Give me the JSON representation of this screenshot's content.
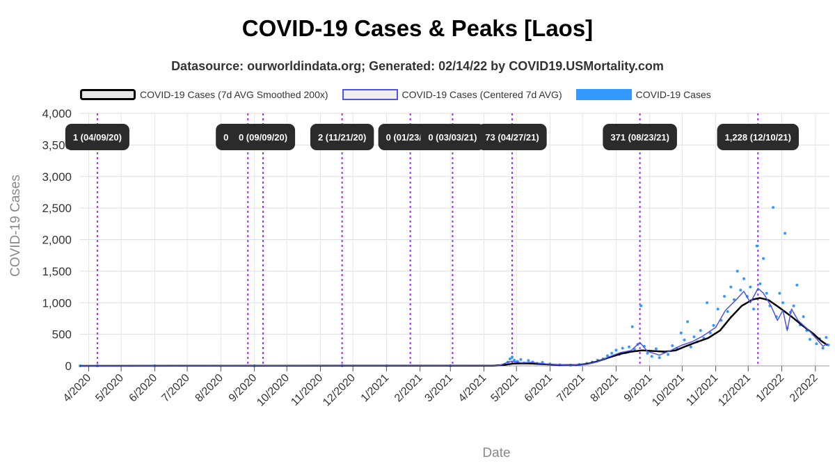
{
  "chart_data": {
    "type": "line",
    "title": "COVID-19 Cases & Peaks [Laos]",
    "subtitle": "Datasource: ourworldindata.org; Generated: 02/14/22 by COVID19.USMortality.com",
    "xlabel": "Date",
    "ylabel": "COVID-19 Cases",
    "ylim": [
      0,
      4000
    ],
    "y_ticks": [
      "0",
      "500",
      "1,000",
      "1,500",
      "2,000",
      "2,500",
      "3,000",
      "3,500",
      "4,000"
    ],
    "y_tick_values": [
      0,
      500,
      1000,
      1500,
      2000,
      2500,
      3000,
      3500,
      4000
    ],
    "x_range": [
      "2020-03-24",
      "2022-02-14"
    ],
    "x_ticks": [
      {
        "date": "2020-04-01",
        "label": "4/2020"
      },
      {
        "date": "2020-05-01",
        "label": "5/2020"
      },
      {
        "date": "2020-06-01",
        "label": "6/2020"
      },
      {
        "date": "2020-07-01",
        "label": "7/2020"
      },
      {
        "date": "2020-08-01",
        "label": "8/2020"
      },
      {
        "date": "2020-09-01",
        "label": "9/2020"
      },
      {
        "date": "2020-10-01",
        "label": "10/2020"
      },
      {
        "date": "2020-11-01",
        "label": "11/2020"
      },
      {
        "date": "2020-12-01",
        "label": "12/2020"
      },
      {
        "date": "2021-01-01",
        "label": "1/2021"
      },
      {
        "date": "2021-02-01",
        "label": "2/2021"
      },
      {
        "date": "2021-03-01",
        "label": "3/2021"
      },
      {
        "date": "2021-04-01",
        "label": "4/2021"
      },
      {
        "date": "2021-05-01",
        "label": "5/2021"
      },
      {
        "date": "2021-06-01",
        "label": "6/2021"
      },
      {
        "date": "2021-07-01",
        "label": "7/2021"
      },
      {
        "date": "2021-08-01",
        "label": "8/2021"
      },
      {
        "date": "2021-09-01",
        "label": "9/2021"
      },
      {
        "date": "2021-10-01",
        "label": "10/2021"
      },
      {
        "date": "2021-11-01",
        "label": "11/2021"
      },
      {
        "date": "2021-12-01",
        "label": "12/2021"
      },
      {
        "date": "2022-01-01",
        "label": "1/2022"
      },
      {
        "date": "2022-02-01",
        "label": "2/2022"
      }
    ],
    "legend": {
      "placement": "top-left",
      "entries": [
        {
          "label": "COVID-19 Cases (7d AVG Smoothed 200x)",
          "color": "#000000"
        },
        {
          "label": "COVID-19 Cases (Centered 7d AVG)",
          "color": "#4f52e3"
        },
        {
          "label": "COVID-19 Cases",
          "color": "#3399ff"
        }
      ]
    },
    "grid": true,
    "peaks": [
      {
        "date": "2020-04-09",
        "label": "1 (04/09/20)"
      },
      {
        "date": "2020-08-26",
        "label": "0 (08/26/20)"
      },
      {
        "date": "2020-09-09",
        "label": "0 (09/09/20)"
      },
      {
        "date": "2020-11-21",
        "label": "2 (11/21/20)"
      },
      {
        "date": "2021-01-23",
        "label": "0 (01/23/21)"
      },
      {
        "date": "2021-03-03",
        "label": "0 (03/03/21)"
      },
      {
        "date": "2021-04-27",
        "label": "73 (04/27/21)"
      },
      {
        "date": "2021-08-23",
        "label": "371 (08/23/21)"
      },
      {
        "date": "2021-12-10",
        "label": "1,228 (12/10/21)"
      }
    ],
    "series": [
      {
        "name": "COVID-19 Cases (7d AVG Smoothed 200x)",
        "color": "#000000",
        "points": [
          [
            "2020-03-24",
            0
          ],
          [
            "2021-04-10",
            3
          ],
          [
            "2021-04-20",
            15
          ],
          [
            "2021-04-28",
            35
          ],
          [
            "2021-05-10",
            40
          ],
          [
            "2021-05-25",
            28
          ],
          [
            "2021-06-10",
            12
          ],
          [
            "2021-06-25",
            12
          ],
          [
            "2021-07-05",
            30
          ],
          [
            "2021-07-15",
            70
          ],
          [
            "2021-07-25",
            130
          ],
          [
            "2021-08-05",
            190
          ],
          [
            "2021-08-15",
            225
          ],
          [
            "2021-08-25",
            245
          ],
          [
            "2021-09-05",
            235
          ],
          [
            "2021-09-15",
            225
          ],
          [
            "2021-09-25",
            245
          ],
          [
            "2021-10-05",
            315
          ],
          [
            "2021-10-15",
            380
          ],
          [
            "2021-10-25",
            440
          ],
          [
            "2021-11-05",
            560
          ],
          [
            "2021-11-15",
            770
          ],
          [
            "2021-11-25",
            950
          ],
          [
            "2021-12-05",
            1050
          ],
          [
            "2021-12-12",
            1075
          ],
          [
            "2021-12-20",
            1040
          ],
          [
            "2021-12-30",
            920
          ],
          [
            "2022-01-10",
            780
          ],
          [
            "2022-01-20",
            640
          ],
          [
            "2022-01-30",
            510
          ],
          [
            "2022-02-06",
            400
          ],
          [
            "2022-02-12",
            330
          ]
        ]
      },
      {
        "name": "COVID-19 Cases (Centered 7d AVG)",
        "color": "#4f52e3",
        "points": [
          [
            "2020-03-24",
            0
          ],
          [
            "2021-04-15",
            5
          ],
          [
            "2021-04-22",
            50
          ],
          [
            "2021-04-27",
            73
          ],
          [
            "2021-05-05",
            50
          ],
          [
            "2021-05-15",
            55
          ],
          [
            "2021-05-25",
            35
          ],
          [
            "2021-06-05",
            20
          ],
          [
            "2021-06-20",
            10
          ],
          [
            "2021-07-05",
            25
          ],
          [
            "2021-07-15",
            65
          ],
          [
            "2021-07-25",
            140
          ],
          [
            "2021-08-05",
            210
          ],
          [
            "2021-08-15",
            245
          ],
          [
            "2021-08-23",
            371
          ],
          [
            "2021-08-30",
            230
          ],
          [
            "2021-09-10",
            170
          ],
          [
            "2021-09-20",
            240
          ],
          [
            "2021-10-01",
            330
          ],
          [
            "2021-10-10",
            380
          ],
          [
            "2021-10-20",
            470
          ],
          [
            "2021-11-01",
            610
          ],
          [
            "2021-11-10",
            880
          ],
          [
            "2021-11-20",
            1050
          ],
          [
            "2021-11-27",
            1180
          ],
          [
            "2021-12-03",
            1000
          ],
          [
            "2021-12-10",
            1228
          ],
          [
            "2021-12-15",
            1150
          ],
          [
            "2021-12-22",
            950
          ],
          [
            "2021-12-28",
            720
          ],
          [
            "2022-01-02",
            880
          ],
          [
            "2022-01-06",
            560
          ],
          [
            "2022-01-10",
            900
          ],
          [
            "2022-01-16",
            720
          ],
          [
            "2022-01-25",
            580
          ],
          [
            "2022-02-02",
            430
          ],
          [
            "2022-02-08",
            310
          ],
          [
            "2022-02-12",
            350
          ]
        ]
      }
    ],
    "scatter": {
      "name": "COVID-19 Cases",
      "color": "#3399ff",
      "points": [
        [
          "2020-03-24",
          0
        ],
        [
          "2020-04-09",
          1
        ],
        [
          "2020-06-01",
          0
        ],
        [
          "2020-09-01",
          0
        ],
        [
          "2020-11-21",
          2
        ],
        [
          "2021-01-01",
          0
        ],
        [
          "2021-03-01",
          0
        ],
        [
          "2021-04-20",
          20
        ],
        [
          "2021-04-23",
          60
        ],
        [
          "2021-04-25",
          110
        ],
        [
          "2021-04-27",
          140
        ],
        [
          "2021-04-29",
          90
        ],
        [
          "2021-05-02",
          70
        ],
        [
          "2021-05-05",
          100
        ],
        [
          "2021-05-08",
          45
        ],
        [
          "2021-05-12",
          85
        ],
        [
          "2021-05-16",
          60
        ],
        [
          "2021-05-20",
          40
        ],
        [
          "2021-05-25",
          55
        ],
        [
          "2021-06-01",
          30
        ],
        [
          "2021-06-10",
          15
        ],
        [
          "2021-06-20",
          10
        ],
        [
          "2021-06-28",
          20
        ],
        [
          "2021-07-05",
          40
        ],
        [
          "2021-07-10",
          60
        ],
        [
          "2021-07-15",
          90
        ],
        [
          "2021-07-20",
          110
        ],
        [
          "2021-07-24",
          160
        ],
        [
          "2021-07-28",
          200
        ],
        [
          "2021-08-01",
          250
        ],
        [
          "2021-08-04",
          180
        ],
        [
          "2021-08-07",
          280
        ],
        [
          "2021-08-10",
          210
        ],
        [
          "2021-08-13",
          300
        ],
        [
          "2021-08-16",
          620
        ],
        [
          "2021-08-18",
          260
        ],
        [
          "2021-08-21",
          340
        ],
        [
          "2021-08-24",
          950
        ],
        [
          "2021-08-27",
          310
        ],
        [
          "2021-08-30",
          200
        ],
        [
          "2021-09-03",
          150
        ],
        [
          "2021-09-07",
          270
        ],
        [
          "2021-09-10",
          130
        ],
        [
          "2021-09-14",
          220
        ],
        [
          "2021-09-18",
          180
        ],
        [
          "2021-09-22",
          320
        ],
        [
          "2021-09-26",
          280
        ],
        [
          "2021-09-30",
          520
        ],
        [
          "2021-10-03",
          410
        ],
        [
          "2021-10-06",
          700
        ],
        [
          "2021-10-09",
          300
        ],
        [
          "2021-10-12",
          460
        ],
        [
          "2021-10-15",
          380
        ],
        [
          "2021-10-18",
          560
        ],
        [
          "2021-10-21",
          440
        ],
        [
          "2021-10-24",
          1000
        ],
        [
          "2021-10-27",
          520
        ],
        [
          "2021-10-30",
          640
        ],
        [
          "2021-11-03",
          900
        ],
        [
          "2021-11-06",
          720
        ],
        [
          "2021-11-09",
          1100
        ],
        [
          "2021-11-12",
          860
        ],
        [
          "2021-11-15",
          1250
        ],
        [
          "2021-11-18",
          1050
        ],
        [
          "2021-11-21",
          1500
        ],
        [
          "2021-11-24",
          1200
        ],
        [
          "2021-11-27",
          1380
        ],
        [
          "2021-11-30",
          1100
        ],
        [
          "2021-12-03",
          1250
        ],
        [
          "2021-12-06",
          900
        ],
        [
          "2021-12-09",
          1900
        ],
        [
          "2021-12-12",
          1300
        ],
        [
          "2021-12-15",
          1700
        ],
        [
          "2021-12-18",
          1150
        ],
        [
          "2021-12-21",
          950
        ],
        [
          "2021-12-24",
          2510
        ],
        [
          "2021-12-27",
          780
        ],
        [
          "2021-12-30",
          1150
        ],
        [
          "2022-01-02",
          1000
        ],
        [
          "2022-01-04",
          2100
        ],
        [
          "2022-01-06",
          600
        ],
        [
          "2022-01-09",
          850
        ],
        [
          "2022-01-12",
          950
        ],
        [
          "2022-01-15",
          1280
        ],
        [
          "2022-01-18",
          650
        ],
        [
          "2022-01-21",
          780
        ],
        [
          "2022-01-24",
          560
        ],
        [
          "2022-01-27",
          420
        ],
        [
          "2022-01-30",
          500
        ],
        [
          "2022-02-02",
          350
        ],
        [
          "2022-02-05",
          430
        ],
        [
          "2022-02-08",
          280
        ],
        [
          "2022-02-11",
          450
        ],
        [
          "2022-02-13",
          330
        ]
      ]
    }
  }
}
